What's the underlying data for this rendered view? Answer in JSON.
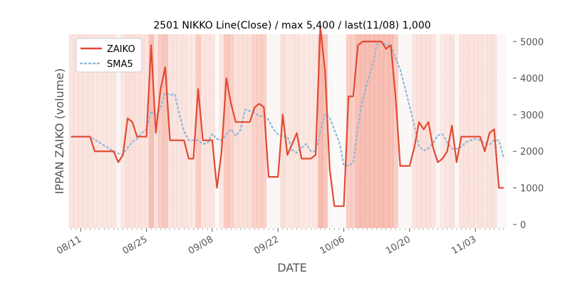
{
  "chart_data": {
    "type": "line",
    "title": "2501 NIKKO Line(Close) / max 5,400 / last(11/08) 1,000",
    "xlabel": "DATE",
    "ylabel": "IPPAN ZAIKO (volume)",
    "ylim": [
      -100,
      5200
    ],
    "yticks": [
      0,
      1000,
      2000,
      3000,
      4000,
      5000
    ],
    "ytick_labels": [
      "0",
      "1000",
      "2000",
      "3000",
      "4000",
      "5000"
    ],
    "xlim": [
      0,
      94
    ],
    "xticks": [
      {
        "index": 2,
        "label": "08/11"
      },
      {
        "index": 16,
        "label": "08/25"
      },
      {
        "index": 30,
        "label": "09/08"
      },
      {
        "index": 44,
        "label": "09/22"
      },
      {
        "index": 58,
        "label": "10/06"
      },
      {
        "index": 72,
        "label": "10/20"
      },
      {
        "index": 86,
        "label": "11/03"
      }
    ],
    "legend": {
      "position": "top-left",
      "entries": [
        "ZAIKO",
        "SMA5"
      ]
    },
    "colors": {
      "zaiko": "#e24a33",
      "sma5": "#8eb8d8",
      "band_base": "#ede6e0",
      "band_highlight": "#f4a090",
      "axes_bg": "#ffffff",
      "border": "#e5e5e5"
    },
    "series": [
      {
        "name": "ZAIKO",
        "values": [
          2400,
          2400,
          2400,
          2400,
          2400,
          2000,
          2000,
          2000,
          2000,
          2000,
          1700,
          1900,
          2900,
          2800,
          2400,
          2400,
          2400,
          4900,
          2500,
          3700,
          4300,
          2300,
          2300,
          2300,
          2300,
          1800,
          1800,
          3700,
          2300,
          2300,
          2300,
          1000,
          2000,
          4000,
          3300,
          2800,
          2800,
          2800,
          2800,
          3200,
          3300,
          3200,
          1300,
          1300,
          1300,
          3000,
          1900,
          2200,
          2500,
          1800,
          1800,
          1800,
          1900,
          5400,
          4200,
          1500,
          500,
          500,
          500,
          3500,
          3500,
          4900,
          5000,
          5000,
          5000,
          5000,
          5000,
          4800,
          4900,
          3500,
          1600,
          1600,
          1600,
          2100,
          2800,
          2600,
          2800,
          2100,
          1700,
          1800,
          2000,
          2700,
          1700,
          2400,
          2400,
          2400,
          2400,
          2400,
          2000,
          2500,
          2600,
          1000,
          1000
        ]
      },
      {
        "name": "SMA5",
        "values": [
          2400,
          2400,
          2400,
          2400,
          2400,
          2320,
          2240,
          2160,
          2080,
          2000,
          1940,
          1920,
          2100,
          2260,
          2340,
          2500,
          2600,
          3100,
          2940,
          3180,
          3600,
          3540,
          3560,
          3020,
          2540,
          2300,
          2300,
          2300,
          2200,
          2220,
          2480,
          2340,
          2300,
          2460,
          2600,
          2420,
          2580,
          3140,
          3100,
          3060,
          2960,
          2960,
          2860,
          2600,
          2460,
          2400,
          2400,
          2040,
          1960,
          2100,
          2200,
          2000,
          2000,
          2540,
          3020,
          2920,
          2580,
          2260,
          1620,
          1600,
          1700,
          2680,
          3400,
          3880,
          4300,
          4900,
          5000,
          4900,
          4900,
          4540,
          4240,
          3740,
          3240,
          2700,
          2140,
          2020,
          2080,
          2220,
          2440,
          2470,
          2240,
          2070,
          2070,
          2120,
          2250,
          2300,
          2340,
          2300,
          2220,
          2180,
          2300,
          2300,
          1840
        ]
      }
    ]
  }
}
